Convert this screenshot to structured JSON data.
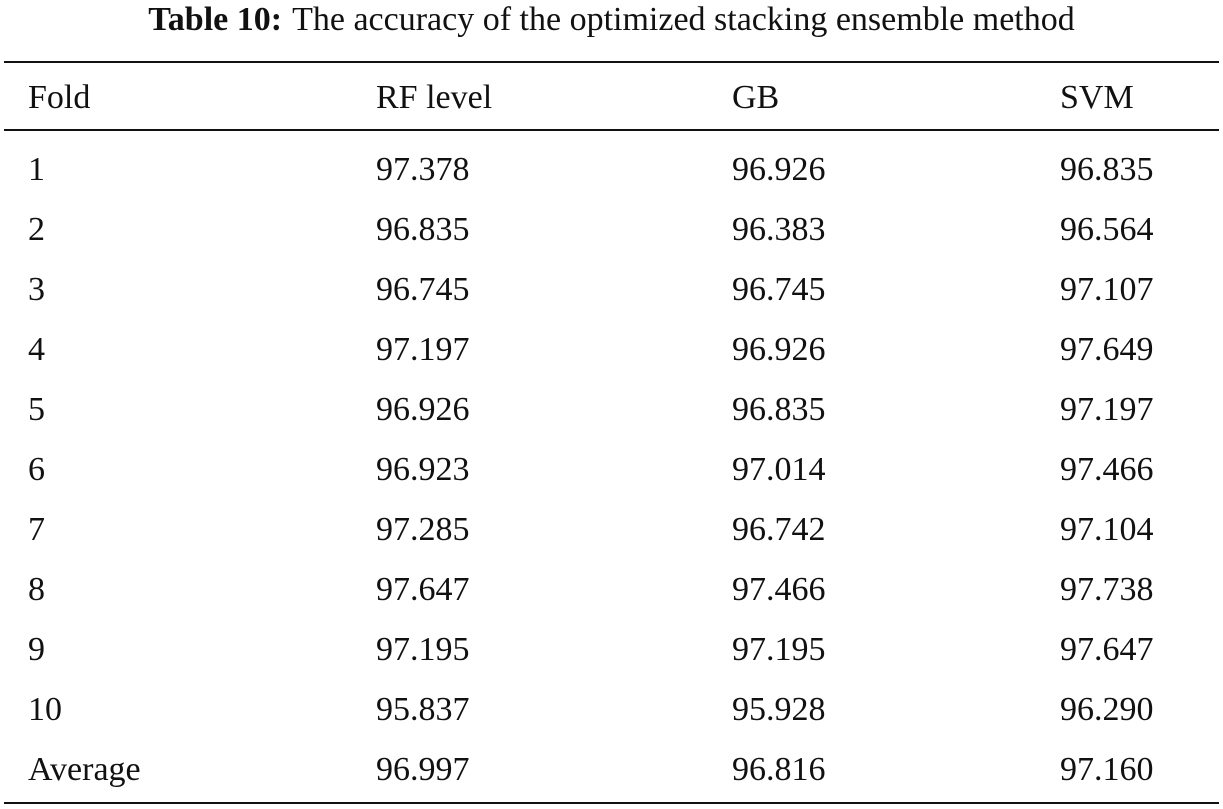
{
  "caption": {
    "label": "Table 10:",
    "text": "The accuracy of the optimized stacking ensemble method"
  },
  "table": {
    "header": [
      "Fold",
      "RF level",
      "GB",
      "SVM"
    ],
    "rows": [
      [
        "1",
        "97.378",
        "96.926",
        "96.835"
      ],
      [
        "2",
        "96.835",
        "96.383",
        "96.564"
      ],
      [
        "3",
        "96.745",
        "96.745",
        "97.107"
      ],
      [
        "4",
        "97.197",
        "96.926",
        "97.649"
      ],
      [
        "5",
        "96.926",
        "96.835",
        "97.197"
      ],
      [
        "6",
        "96.923",
        "97.014",
        "97.466"
      ],
      [
        "7",
        "97.285",
        "96.742",
        "97.104"
      ],
      [
        "8",
        "97.647",
        "97.466",
        "97.738"
      ],
      [
        "9",
        "97.195",
        "97.195",
        "97.647"
      ],
      [
        "10",
        "95.837",
        "95.928",
        "96.290"
      ],
      [
        "Average",
        "96.997",
        "96.816",
        "97.160"
      ]
    ]
  }
}
